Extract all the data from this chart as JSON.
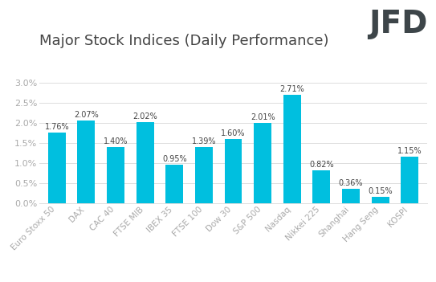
{
  "title": "Major Stock Indices (Daily Performance)",
  "categories": [
    "Euro Stoxx 50",
    "DAX",
    "CAC 40",
    "FTSE MIB",
    "IBEX 35",
    "FTSE 100",
    "Dow 30",
    "S&P 500",
    "Nasdaq",
    "Nikkei 225",
    "Shanghai",
    "Hang Seng",
    "KOSPI"
  ],
  "values": [
    1.76,
    2.07,
    1.4,
    2.02,
    0.95,
    1.39,
    1.6,
    2.01,
    2.71,
    0.82,
    0.36,
    0.15,
    1.15
  ],
  "labels": [
    "1.76%",
    "2.07%",
    "1.40%",
    "2.02%",
    "0.95%",
    "1.39%",
    "1.60%",
    "2.01%",
    "2.71%",
    "0.82%",
    "0.36%",
    "0.15%",
    "1.15%"
  ],
  "bar_color": "#00BFDF",
  "background_color": "#ffffff",
  "title_color": "#444444",
  "label_color": "#444444",
  "tick_color": "#aaaaaa",
  "grid_color": "#dddddd",
  "ylim": [
    0,
    3.1
  ],
  "yticks": [
    0.0,
    0.5,
    1.0,
    1.5,
    2.0,
    2.5,
    3.0
  ],
  "title_fontsize": 13,
  "label_fontsize": 7,
  "tick_fontsize": 8,
  "xtick_fontsize": 7.5,
  "logo_text": "JFD",
  "logo_fontsize": 28,
  "logo_color": "#3d4549"
}
